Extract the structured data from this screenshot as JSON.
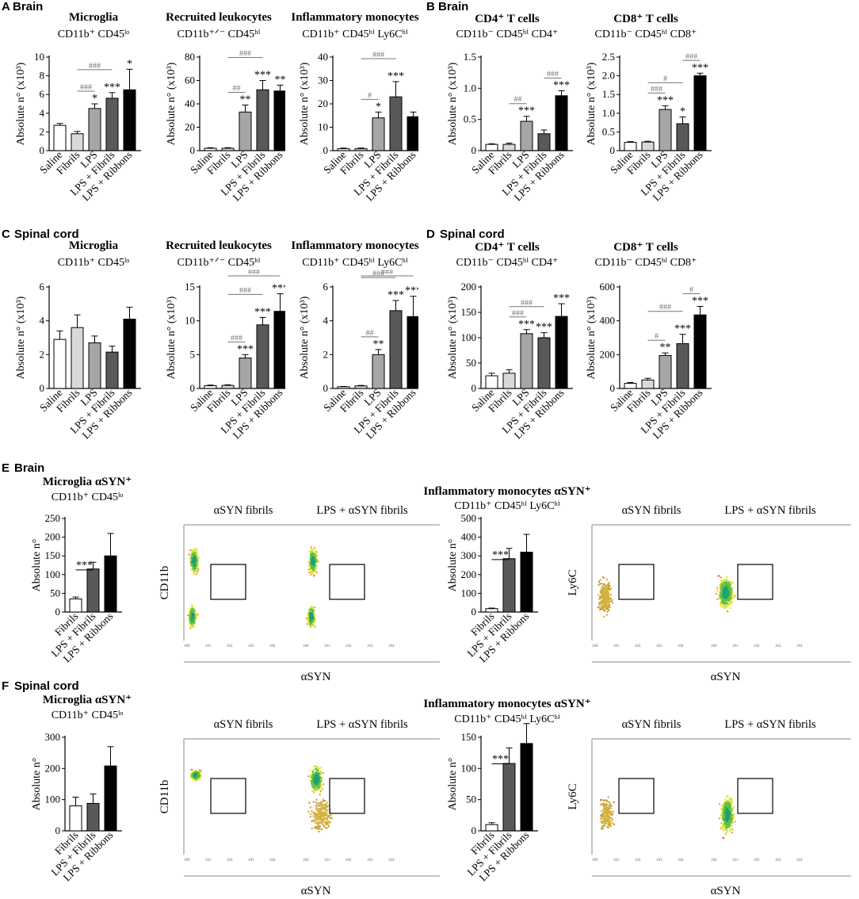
{
  "regions": {
    "A": "Brain",
    "B": "Brain",
    "C": "Spinal cord",
    "D": "Spinal cord",
    "E": "Brain",
    "F": "Spinal cord"
  },
  "panel_letters": {
    "A": "A",
    "B": "B",
    "C": "C",
    "D": "D",
    "E": "E",
    "F": "F"
  },
  "colors": {
    "saline": "#ffffff",
    "fibrils": "#d9d9d9",
    "lps": "#a6a6a6",
    "lps_fibrils": "#595959",
    "lps_ribbons": "#000000",
    "axis": "#000000",
    "sig": "#777777"
  },
  "ylabel_x103": "Absolute n° (x10³)",
  "ylabel_plain": "Absolute n°",
  "chart_data": [
    {
      "id": "A1",
      "type": "bar",
      "title": "Microglia",
      "subtitle": "CD11b⁺ CD45ˡᵒ",
      "categories": [
        "Saline",
        "Fibrils",
        "LPS",
        "LPS + Fibrils",
        "LPS + Ribbons"
      ],
      "values": [
        2.7,
        1.8,
        4.5,
        5.6,
        6.5
      ],
      "errors": [
        0.2,
        0.25,
        0.5,
        0.6,
        2.2
      ],
      "ylim": [
        0,
        10
      ],
      "yticks": [
        0,
        2,
        4,
        6,
        8,
        10
      ],
      "stars": [
        "",
        "",
        "*",
        "***",
        "*"
      ],
      "hash": [
        {
          "from": 1,
          "to": 2,
          "label": "###",
          "level": 1
        },
        {
          "from": 1,
          "to": 3,
          "label": "###",
          "level": 2
        }
      ],
      "ylabel": "Absolute n° (x10³)"
    },
    {
      "id": "A2",
      "type": "bar",
      "title": "Recruited leukocytes",
      "subtitle": "CD11b⁺ᐟ⁻ CD45ʰⁱ",
      "categories": [
        "Saline",
        "Fibrils",
        "LPS",
        "LPS + Fibrils",
        "LPS + Ribbons"
      ],
      "values": [
        2,
        2,
        33,
        52,
        51
      ],
      "errors": [
        0.5,
        0.5,
        6,
        8,
        5
      ],
      "ylim": [
        0,
        80
      ],
      "yticks": [
        0,
        20,
        40,
        60,
        80
      ],
      "stars": [
        "",
        "",
        "**",
        "***",
        "**"
      ],
      "hash": [
        {
          "from": 1,
          "to": 2,
          "label": "##",
          "level": 1
        },
        {
          "from": 1,
          "to": 3,
          "label": "###",
          "level": 2
        }
      ],
      "ylabel": "Absolute n° (x10³)"
    },
    {
      "id": "A3",
      "type": "bar",
      "title": "Inflammatory monocytes",
      "subtitle": "CD11b⁺ CD45ʰⁱ Ly6Cʰⁱ",
      "categories": [
        "Saline",
        "Fibrils",
        "LPS",
        "LPS + Fibrils",
        "LPS + Ribbons"
      ],
      "values": [
        0.8,
        0.8,
        14,
        23,
        14.5
      ],
      "errors": [
        0.3,
        0.3,
        2.5,
        6.5,
        2
      ],
      "ylim": [
        0,
        40
      ],
      "yticks": [
        0,
        10,
        20,
        30,
        40
      ],
      "stars": [
        "",
        "",
        "*",
        "***",
        ""
      ],
      "hash": [
        {
          "from": 1,
          "to": 2,
          "label": "#",
          "level": 1
        },
        {
          "from": 1,
          "to": 3,
          "label": "###",
          "level": 2
        }
      ],
      "ylabel": "Absolute n° (x10³)"
    },
    {
      "id": "B1",
      "type": "bar",
      "title": "CD4⁺ T cells",
      "subtitle": "CD11b⁻ CD45ʰⁱ CD4⁺",
      "categories": [
        "Saline",
        "Fibrils",
        "LPS",
        "LPS + Fibrils",
        "LPS + Ribbons"
      ],
      "values": [
        0.1,
        0.1,
        0.47,
        0.27,
        0.88
      ],
      "errors": [
        0.01,
        0.02,
        0.08,
        0.06,
        0.08
      ],
      "ylim": [
        0,
        1.5
      ],
      "yticks": [
        0,
        0.5,
        1.0,
        1.5
      ],
      "ytickfmt": [
        "0",
        "0.5",
        "1.0",
        "1.5"
      ],
      "stars": [
        "",
        "",
        "***",
        "",
        "***"
      ],
      "hash": [
        {
          "from": 1,
          "to": 2,
          "label": "##",
          "level": 1
        },
        {
          "from": 3,
          "to": 4,
          "label": "###",
          "level": 1
        }
      ],
      "ylabel": "Absolute n° (x10³)"
    },
    {
      "id": "B2",
      "type": "bar",
      "title": "CD8⁺ T cells",
      "subtitle": "CD11b⁻ CD45ʰⁱ CD8⁺",
      "categories": [
        "Saline",
        "Fibrils",
        "LPS",
        "LPS + Fibrils",
        "LPS + Ribbons"
      ],
      "values": [
        0.22,
        0.23,
        1.1,
        0.72,
        2.0
      ],
      "errors": [
        0.02,
        0.02,
        0.1,
        0.18,
        0.07
      ],
      "ylim": [
        0,
        2.5
      ],
      "yticks": [
        0,
        0.5,
        1.0,
        1.5,
        2.0,
        2.5
      ],
      "ytickfmt": [
        "0",
        "0.5",
        "1.0",
        "1.5",
        "2.0",
        "2.5"
      ],
      "stars": [
        "",
        "",
        "***",
        "*",
        "***"
      ],
      "hash": [
        {
          "from": 1,
          "to": 2,
          "label": "###",
          "level": 1
        },
        {
          "from": 1,
          "to": 3,
          "label": "#",
          "level": 2
        },
        {
          "from": 3,
          "to": 4,
          "label": "###",
          "level": 1
        }
      ],
      "ylabel": "Absolute n° (x10³)"
    },
    {
      "id": "C1",
      "type": "bar",
      "title": "Microglia",
      "subtitle": "CD11b⁺ CD45ˡᵒ",
      "categories": [
        "Saline",
        "Fibrils",
        "LPS",
        "LPS + Fibrils",
        "LPS + Ribbons"
      ],
      "values": [
        2.9,
        3.6,
        2.7,
        2.15,
        4.1
      ],
      "errors": [
        0.5,
        0.75,
        0.4,
        0.35,
        0.7
      ],
      "ylim": [
        0,
        6
      ],
      "yticks": [
        0,
        2,
        4,
        6
      ],
      "stars": [
        "",
        "",
        "",
        "",
        ""
      ],
      "hash": [],
      "ylabel": "Absolute n° (x10³)"
    },
    {
      "id": "C2",
      "type": "bar",
      "title": "Recruited leukocytes",
      "subtitle": "CD11b⁺ᐟ⁻ CD45ʰⁱ",
      "categories": [
        "Saline",
        "Fibrils",
        "LPS",
        "LPS + Fibrils",
        "LPS + Ribbons"
      ],
      "values": [
        0.4,
        0.45,
        4.5,
        9.4,
        11.4
      ],
      "errors": [
        0.1,
        0.1,
        0.5,
        1.1,
        2.6
      ],
      "ylim": [
        0,
        15
      ],
      "yticks": [
        0,
        5,
        10,
        15
      ],
      "stars": [
        "",
        "",
        "***",
        "***",
        "***"
      ],
      "hash": [
        {
          "from": 1,
          "to": 2,
          "label": "###",
          "level": 1
        },
        {
          "from": 1,
          "to": 3,
          "label": "###",
          "level": 2
        },
        {
          "from": 1,
          "to": 4,
          "label": "###",
          "level": 3
        }
      ],
      "ylabel": "Absolute n° (x10³)"
    },
    {
      "id": "C3",
      "type": "bar",
      "title": "Inflammatory monocytes",
      "subtitle": "CD11b⁺ CD45ʰⁱ Ly6Cʰⁱ",
      "categories": [
        "Saline",
        "Fibrils",
        "LPS",
        "LPS + Fibrils",
        "LPS + Ribbons"
      ],
      "values": [
        0.1,
        0.15,
        2.0,
        4.6,
        4.25
      ],
      "errors": [
        0.02,
        0.03,
        0.3,
        0.6,
        1.2
      ],
      "ylim": [
        0,
        6
      ],
      "yticks": [
        0,
        2,
        4,
        6
      ],
      "stars": [
        "",
        "",
        "**",
        "***",
        "***"
      ],
      "hash": [
        {
          "from": 1,
          "to": 2,
          "label": "##",
          "level": 1
        },
        {
          "from": 1,
          "to": 3,
          "label": "###",
          "level": 2
        },
        {
          "from": 1,
          "to": 4,
          "label": "###",
          "level": 3
        }
      ],
      "ylabel": "Absolute n° (x10³)"
    },
    {
      "id": "D1",
      "type": "bar",
      "title": "CD4⁺ T cells",
      "subtitle": "CD11b⁻ CD45ʰⁱ CD4⁺",
      "categories": [
        "Saline",
        "Fibrils",
        "LPS",
        "LPS + Fibrils",
        "LPS + Ribbons"
      ],
      "values": [
        25,
        30,
        108,
        100,
        142
      ],
      "errors": [
        5,
        7,
        8,
        10,
        25
      ],
      "ylim": [
        0,
        200
      ],
      "yticks": [
        0,
        50,
        100,
        150,
        200
      ],
      "stars": [
        "",
        "",
        "***",
        "***",
        "***"
      ],
      "hash": [
        {
          "from": 1,
          "to": 2,
          "label": "###",
          "level": 1
        },
        {
          "from": 1,
          "to": 3,
          "label": "###",
          "level": 2
        }
      ],
      "ylabel": "Absolute n° (x10³)"
    },
    {
      "id": "D2",
      "type": "bar",
      "title": "CD8⁺ T cells",
      "subtitle": "CD11b⁻ CD45ʰⁱ CD8⁺",
      "categories": [
        "Saline",
        "Fibrils",
        "LPS",
        "LPS + Fibrils",
        "LPS + Ribbons"
      ],
      "values": [
        30,
        50,
        195,
        265,
        435
      ],
      "errors": [
        5,
        10,
        15,
        55,
        50
      ],
      "ylim": [
        0,
        600
      ],
      "yticks": [
        0,
        200,
        400,
        600
      ],
      "stars": [
        "",
        "",
        "**",
        "***",
        "***"
      ],
      "hash": [
        {
          "from": 1,
          "to": 2,
          "label": "#",
          "level": 1
        },
        {
          "from": 1,
          "to": 3,
          "label": "###",
          "level": 2
        },
        {
          "from": 3,
          "to": 4,
          "label": "#",
          "level": 1
        }
      ],
      "ylabel": "Absolute n° (x10³)"
    },
    {
      "id": "E1",
      "type": "bar",
      "title": "Microglia αSYN⁺",
      "subtitle": "CD11b⁺ CD45ˡᵒ",
      "categories": [
        "Fibrils",
        "LPS + Fibrils",
        "LPS + Ribbons"
      ],
      "values": [
        35,
        115,
        150
      ],
      "errors": [
        5,
        18,
        60
      ],
      "ylim": [
        0,
        250
      ],
      "yticks": [
        0,
        50,
        100,
        150,
        200,
        250
      ],
      "stars": [
        "",
        "",
        ""
      ],
      "hash": [
        {
          "from": 0,
          "to": 1,
          "label": "***",
          "level": 1,
          "black": true
        }
      ],
      "ylabel": "Absolute n°"
    },
    {
      "id": "E2",
      "type": "bar",
      "title": "Inflammatory monocytes αSYN⁺",
      "subtitle": "CD11b⁺ CD45ʰⁱ Ly6Cʰⁱ",
      "categories": [
        "Fibrils",
        "LPS + Fibrils",
        "LPS + Ribbons"
      ],
      "values": [
        18,
        285,
        320
      ],
      "errors": [
        3,
        55,
        95
      ],
      "ylim": [
        0,
        500
      ],
      "yticks": [
        0,
        100,
        200,
        300,
        400,
        500
      ],
      "stars": [
        "",
        "",
        ""
      ],
      "hash": [
        {
          "from": 0,
          "to": 1,
          "label": "***",
          "level": 1,
          "black": true
        }
      ],
      "ylabel": "Absolute n°"
    },
    {
      "id": "F1",
      "type": "bar",
      "title": "Microglia αSYN⁺",
      "subtitle": "CD11b⁺ CD45ˡᵒ",
      "categories": [
        "Fibrils",
        "LPS + Fibrils",
        "LPS + Ribbons"
      ],
      "values": [
        80,
        88,
        208
      ],
      "errors": [
        28,
        30,
        62
      ],
      "ylim": [
        0,
        300
      ],
      "yticks": [
        0,
        100,
        200,
        300
      ],
      "stars": [
        "",
        "",
        ""
      ],
      "hash": [],
      "ylabel": "Absolute n°"
    },
    {
      "id": "F2",
      "type": "bar",
      "title": "Inflammatory monocytes αSYN⁺",
      "subtitle": "CD11b⁺ CD45ʰⁱ Ly6Cʰⁱ",
      "categories": [
        "Fibrils",
        "LPS + Fibrils",
        "LPS + Ribbons"
      ],
      "values": [
        10,
        108,
        140
      ],
      "errors": [
        3,
        25,
        32
      ],
      "ylim": [
        0,
        150
      ],
      "yticks": [
        0,
        50,
        100,
        150
      ],
      "stars": [
        "",
        "",
        ""
      ],
      "hash": [
        {
          "from": 0,
          "to": 1,
          "label": "***",
          "level": 1,
          "black": true
        }
      ],
      "ylabel": "Absolute n°"
    }
  ],
  "flow": {
    "left_title": "αSYN fibrils",
    "right_title": "LPS + αSYN fibrils",
    "xlabel": "αSYN",
    "ylabel_cd11b": "CD11b",
    "ylabel_ly6c": "Ly6C"
  }
}
